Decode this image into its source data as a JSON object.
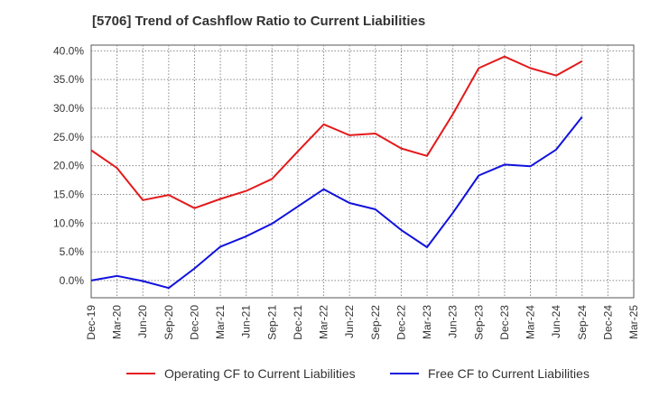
{
  "chart_data": {
    "type": "line",
    "title": "[5706]  Trend of Cashflow Ratio to Current Liabilities",
    "x": [
      "Dec-19",
      "Mar-20",
      "Jun-20",
      "Sep-20",
      "Dec-20",
      "Mar-21",
      "Jun-21",
      "Sep-21",
      "Dec-21",
      "Mar-22",
      "Jun-22",
      "Sep-22",
      "Dec-22",
      "Mar-23",
      "Jun-23",
      "Sep-23",
      "Dec-23",
      "Mar-24",
      "Jun-24",
      "Sep-24",
      "Dec-24",
      "Mar-25"
    ],
    "x_tick_labels": [
      "Dec-19",
      "Mar-20",
      "Jun-20",
      "Sep-20",
      "Dec-20",
      "Mar-21",
      "Jun-21",
      "Sep-21",
      "Dec-21",
      "Mar-22",
      "Jun-22",
      "Sep-22",
      "Dec-22",
      "Mar-23",
      "Jun-23",
      "Sep-23",
      "Dec-23",
      "Mar-24",
      "Jun-24",
      "Sep-24",
      "Dec-24",
      "Mar-25"
    ],
    "y_tick_labels": [
      "0.0%",
      "5.0%",
      "10.0%",
      "15.0%",
      "20.0%",
      "25.0%",
      "30.0%",
      "35.0%",
      "40.0%"
    ],
    "y_ticks": [
      0,
      5,
      10,
      15,
      20,
      25,
      30,
      35,
      40
    ],
    "ylim": [
      -3,
      41
    ],
    "grid": true,
    "legend_position": "bottom",
    "series": [
      {
        "name": "Operating CF to Current Liabilities",
        "color": "#e31a1c",
        "values": [
          22.7,
          19.6,
          14.0,
          14.9,
          12.6,
          14.2,
          15.6,
          17.7,
          22.5,
          27.2,
          25.3,
          25.6,
          23.0,
          21.7,
          29.0,
          37.0,
          39.0,
          37.0,
          35.7,
          38.2,
          null,
          null
        ]
      },
      {
        "name": "Free CF to Current Liabilities",
        "color": "#1111dd",
        "values": [
          0.0,
          0.8,
          -0.1,
          -1.3,
          2.1,
          5.9,
          7.7,
          9.9,
          12.9,
          15.9,
          13.5,
          12.4,
          8.8,
          5.8,
          11.8,
          18.3,
          20.2,
          19.9,
          22.8,
          28.5,
          null,
          null
        ]
      }
    ]
  }
}
